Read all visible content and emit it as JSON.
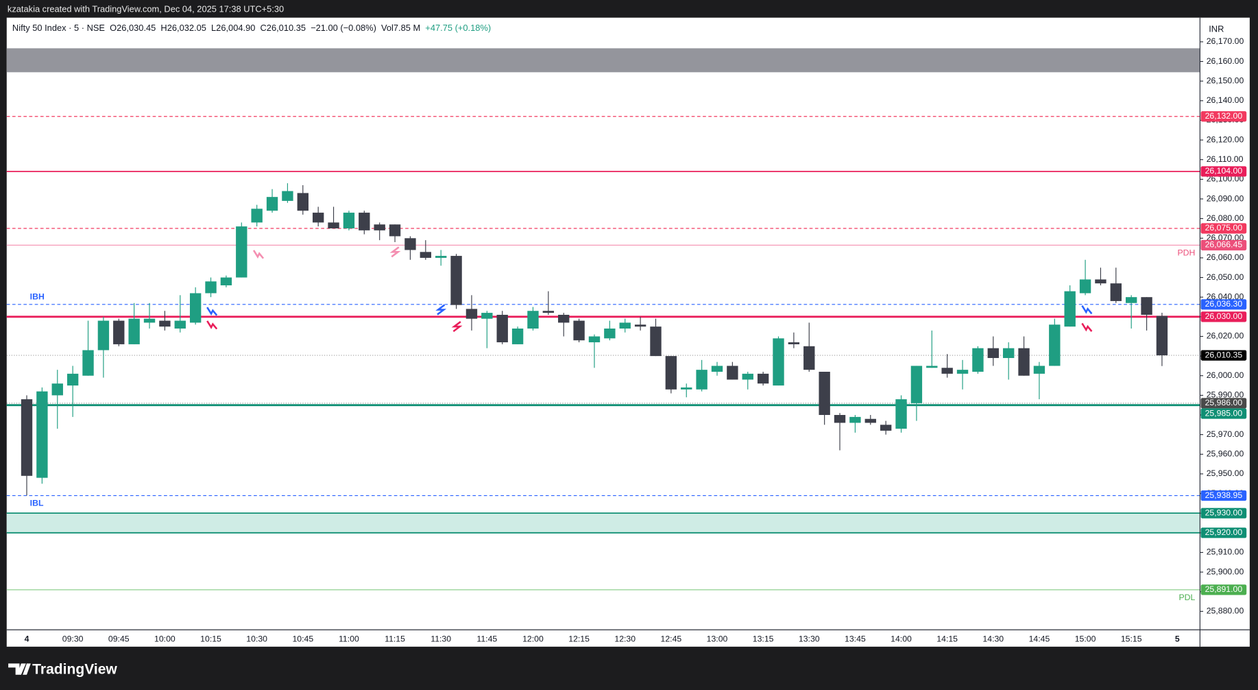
{
  "header": {
    "attribution": "kzatakia created with TradingView.com, Dec 04, 2025 17:38 UTC+5:30",
    "logo": "TradingView"
  },
  "chart_data": {
    "type": "candlestick",
    "legend": {
      "symbol": "Nifty 50 Index · 5 · NSE",
      "ohlc": [
        {
          "label": "O",
          "value": "26,030.45"
        },
        {
          "label": "H",
          "value": "26,032.05"
        },
        {
          "label": "L",
          "value": "26,004.90"
        },
        {
          "label": "C",
          "value": "26,010.35"
        }
      ],
      "change": "−21.00 (−0.08%)",
      "volume_label": "Vol",
      "volume": "7.85 M",
      "indicator": "+47.75 (+0.18%)"
    },
    "currency": "INR",
    "up_color": "#1f9e82",
    "down_color": "#3d3f4a",
    "grid": false,
    "categories": [
      "4",
      null,
      null,
      "09:30",
      null,
      null,
      "09:45",
      null,
      null,
      "10:00",
      null,
      null,
      "10:15",
      null,
      null,
      "10:30",
      null,
      null,
      "10:45",
      null,
      null,
      "11:00",
      null,
      null,
      "11:15",
      null,
      null,
      "11:30",
      null,
      null,
      "11:45",
      null,
      null,
      "12:00",
      null,
      null,
      "12:15",
      null,
      null,
      "12:30",
      null,
      null,
      "12:45",
      null,
      null,
      "13:00",
      null,
      null,
      "13:15",
      null,
      null,
      "13:30",
      null,
      null,
      "13:45",
      null,
      null,
      "14:00",
      null,
      null,
      "14:15",
      null,
      null,
      "14:30",
      null,
      null,
      "14:45",
      null,
      null,
      "15:00",
      null,
      null,
      "15:15",
      null,
      null,
      "5"
    ],
    "open": [
      25988,
      25948,
      25990,
      25995,
      26000,
      26013,
      26028,
      26016,
      26027,
      26028,
      26024,
      26027,
      26042,
      26046,
      26050,
      26078,
      26084,
      26089,
      26093,
      26083,
      26078,
      26075,
      26083,
      26077,
      26077,
      26070,
      26063,
      26060,
      26061,
      26034,
      26029,
      26031,
      26016,
      26024,
      26033,
      26031,
      26028,
      26017,
      26019,
      26024,
      26026,
      26025,
      26010,
      25993,
      25993,
      26002,
      26005,
      25998,
      26001,
      25995,
      26017,
      26015,
      26002,
      25980,
      25976,
      25978,
      25975,
      25973,
      25986,
      26004,
      26004,
      26001,
      26002,
      26014,
      26009,
      26014,
      26001,
      26005,
      26025,
      26042,
      26049,
      26047,
      26037,
      26040,
      26030.45,
      null
    ],
    "high": [
      25990,
      25994,
      26003,
      26005,
      26028,
      26030,
      26029,
      26037,
      26037,
      26033,
      26041,
      26045,
      26050,
      26051,
      26078,
      26087,
      26095,
      26098,
      26097,
      26086,
      26086,
      26084,
      26084,
      26078,
      26077,
      26071,
      26069,
      26064,
      26062,
      26041,
      26033,
      26033,
      26025,
      26035,
      26043,
      26032,
      26029,
      26021,
      26028,
      26029,
      26030,
      26029,
      26010,
      25996,
      26008,
      26007,
      26007,
      26002,
      26002,
      26020,
      26022,
      26027,
      26002,
      25981,
      25980,
      25980,
      25977,
      25990,
      26005,
      26023,
      26011,
      26008,
      26015,
      26020,
      26017,
      26020,
      26007,
      26029,
      26046,
      26059,
      26055,
      26055,
      26041,
      26040,
      26032.05,
      null
    ],
    "low": [
      25938.95,
      25945,
      25973,
      25979,
      26000,
      25999,
      26015,
      26016,
      26024,
      26023,
      26022,
      26026,
      26040,
      26045,
      26050,
      26076,
      26083,
      26088,
      26082,
      26076,
      26075,
      26074,
      26072,
      26069,
      26068,
      26059,
      26059,
      26056,
      26034,
      26023,
      26014,
      26016,
      26016,
      26023,
      26031,
      26020,
      26017,
      26004,
      26018,
      26022,
      26023,
      26010,
      25991,
      25989,
      25992,
      26000,
      25998,
      25993,
      25995,
      25995,
      26014,
      26002,
      25975,
      25962,
      25971,
      25975,
      25970,
      25971,
      25977,
      26004,
      25999,
      25993,
      26001,
      26005,
      25998,
      26000,
      25988,
      26005,
      26025,
      26041,
      26046,
      26037,
      26024,
      26023,
      26004.9,
      null
    ],
    "close": [
      25949,
      25992,
      25996,
      26001,
      26013,
      26028,
      26016,
      26029,
      26029,
      26025,
      26028,
      26042,
      26048,
      26050,
      26076,
      26085,
      26091,
      26094,
      26084,
      26078,
      26075,
      26083,
      26074,
      26074,
      26071,
      26064,
      26060,
      26061,
      26036,
      26029,
      26032,
      26017,
      26024,
      26033,
      26032,
      26027,
      26018,
      26020,
      26024,
      26027,
      26025,
      26010,
      25993,
      25994,
      26003,
      26005,
      25998,
      26001,
      25996,
      26019,
      26016,
      26003,
      25980,
      25976,
      25979,
      25976,
      25972,
      25988,
      26005,
      26005,
      26001,
      26003,
      26014,
      26009,
      26014,
      26000,
      26005,
      26026,
      26043,
      26049,
      26047,
      26038,
      26040,
      26031,
      26010.35,
      null
    ],
    "ylim": [
      25870.6,
      26182.3
    ],
    "yticks": [
      {
        "value": 25880,
        "label": "25,880.00"
      },
      {
        "value": 25890,
        "label": "25,890.00"
      },
      {
        "value": 25900,
        "label": "25,900.00"
      },
      {
        "value": 25910,
        "label": "25,910.00"
      },
      {
        "value": 25920,
        "label": "25,920.00"
      },
      {
        "value": 25930,
        "label": "25,930.00"
      },
      {
        "value": 25940,
        "label": "25,940.00"
      },
      {
        "value": 25950,
        "label": "25,950.00"
      },
      {
        "value": 25960,
        "label": "25,960.00"
      },
      {
        "value": 25970,
        "label": "25,970.00"
      },
      {
        "value": 25980,
        "label": "25,980.00"
      },
      {
        "value": 25990,
        "label": "25,990.00"
      },
      {
        "value": 26000,
        "label": "26,000.00"
      },
      {
        "value": 26010,
        "label": "26,010.00"
      },
      {
        "value": 26020,
        "label": "26,020.00"
      },
      {
        "value": 26030,
        "label": "26,030.00"
      },
      {
        "value": 26040,
        "label": "26,040.00"
      },
      {
        "value": 26050,
        "label": "26,050.00"
      },
      {
        "value": 26060,
        "label": "26,060.00"
      },
      {
        "value": 26070,
        "label": "26,070.00"
      },
      {
        "value": 26080,
        "label": "26,080.00"
      },
      {
        "value": 26090,
        "label": "26,090.00"
      },
      {
        "value": 26100,
        "label": "26,100.00"
      },
      {
        "value": 26110,
        "label": "26,110.00"
      },
      {
        "value": 26120,
        "label": "26,120.00"
      },
      {
        "value": 26130,
        "label": "26,130.00"
      },
      {
        "value": 26140,
        "label": "26,140.00"
      },
      {
        "value": 26150,
        "label": "26,150.00"
      },
      {
        "value": 26160,
        "label": "26,160.00"
      },
      {
        "value": 26170,
        "label": "26,170.00"
      }
    ],
    "zones": [
      {
        "from": 26154.5,
        "to": 26166.7,
        "color": "#94959c"
      },
      {
        "from": 25920,
        "to": 25930,
        "color": "#cfece5"
      }
    ],
    "levels": [
      {
        "value": 26132,
        "label": "26,132.00",
        "color": "#f2395f",
        "style": "dashed"
      },
      {
        "value": 26104,
        "label": "26,104.00",
        "color": "#e91e5a",
        "style": "solid"
      },
      {
        "value": 26075,
        "label": "26,075.00",
        "color": "#f2395f",
        "style": "dashed"
      },
      {
        "value": 26066.45,
        "label": "26,066.45",
        "color": "#f48fb1",
        "badge_color": "#ec4f7a",
        "style": "thin",
        "tag": "PDH",
        "tag_place": "below-right"
      },
      {
        "value": 26036.3,
        "label": "26,036.30",
        "color": "#2962ff",
        "style": "dashed",
        "tag": "IBH",
        "tag_place": "above-left"
      },
      {
        "value": 26030,
        "label": "26,030.00",
        "color": "#e91e5a",
        "style": "thick"
      },
      {
        "value": 26010.35,
        "label": "26,010.35",
        "color": "#9a9a9a",
        "badge_color": "#000000",
        "style": "dotted"
      },
      {
        "value": 25986,
        "label": "25,986.00",
        "color": "#8a8a8a",
        "badge_color": "#4a4a4a",
        "style": "dotted"
      },
      {
        "value": 25985,
        "label": "25,985.00",
        "color": "#0f8f74",
        "style": "thick"
      },
      {
        "value": 25938.95,
        "label": "25,938.95",
        "color": "#2962ff",
        "style": "dashed",
        "tag": "IBL",
        "tag_place": "below-left"
      },
      {
        "value": 25930,
        "label": "25,930.00",
        "color": "#0f8f74",
        "style": "solid"
      },
      {
        "value": 25920,
        "label": "25,920.00",
        "color": "#0f8f74",
        "style": "solid"
      },
      {
        "value": 25891,
        "label": "25,891.00",
        "color": "#8fcf8f",
        "badge_color": "#4caf50",
        "style": "thin",
        "tag": "PDL",
        "tag_place": "below-right"
      }
    ]
  }
}
